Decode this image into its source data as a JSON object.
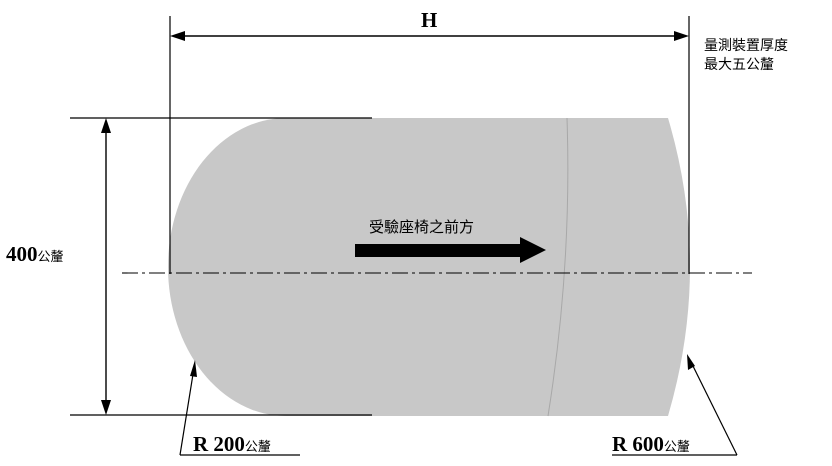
{
  "dimensions": {
    "width_label": "H",
    "height_value": "400",
    "height_unit": "公釐",
    "radius_left_label": "R 200",
    "radius_left_unit": "公釐",
    "radius_right_label": "R 600",
    "radius_right_unit": "公釐"
  },
  "note": {
    "line1": "量測裝置厚度",
    "line2": "最大五公釐"
  },
  "arrow_label": "受驗座椅之前方",
  "colors": {
    "shape_fill": "#c8c8c8",
    "line": "#000000"
  }
}
